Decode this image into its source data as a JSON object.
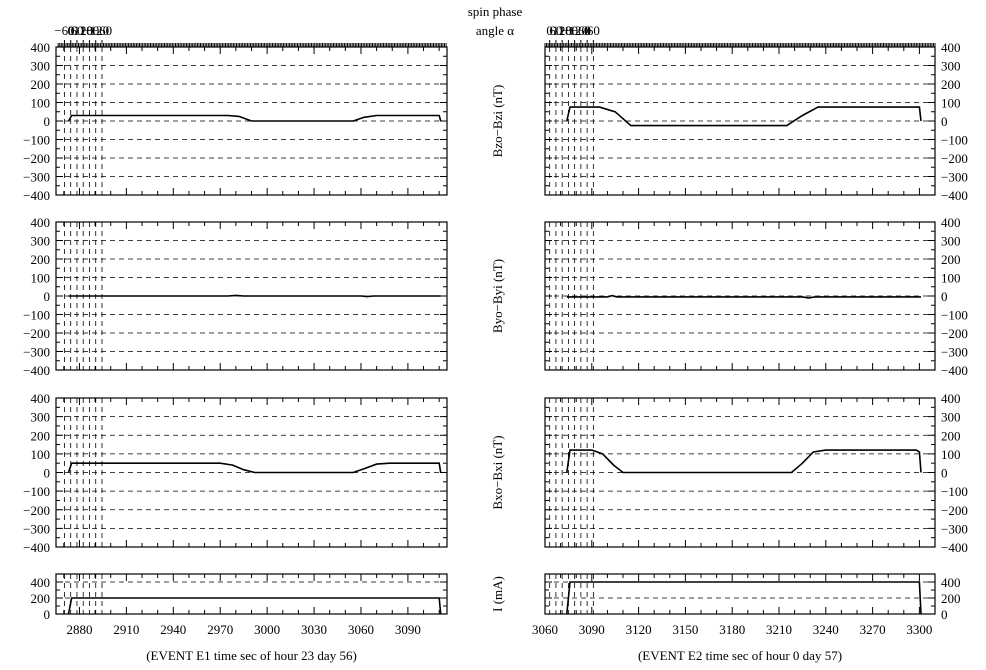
{
  "chart_data": {
    "type": "line",
    "top_axis": {
      "label_line1": "spin phase",
      "label_line2": "angle α",
      "left_ticks": [
        "−60",
        "0",
        "60",
        "120",
        "180",
        "−120",
        "−60"
      ],
      "right_ticks": [
        "0",
        "60",
        "120",
        "180",
        "−120",
        "−60",
        "0",
        "60"
      ]
    },
    "panel_labels": [
      "Bzo−Bzi (nT)",
      "Byo−Byi (nT)",
      "Bxo−Bxi (nT)",
      "I (mA)"
    ],
    "y_ticks_field": [
      "400",
      "300",
      "200",
      "100",
      "0",
      "−100",
      "−200",
      "−300",
      "−400"
    ],
    "y_range_field": [
      -400,
      400
    ],
    "y_ticks_current": [
      "400",
      "200",
      "0"
    ],
    "y_range_current": [
      0,
      500
    ],
    "grid": true,
    "events": [
      {
        "caption": "(EVENT E1  time sec of hour 23 day 56)",
        "x_ticks": [
          "2880",
          "2910",
          "2940",
          "2970",
          "3000",
          "3030",
          "3060",
          "3090"
        ],
        "x_range": [
          2865,
          3115
        ],
        "series": [
          {
            "panel": "Bzo−Bzi (nT)",
            "x": [
              2873,
              2875,
              2975,
              2982,
              2990,
              3055,
              3062,
              3070,
              3078,
              3110,
              3111
            ],
            "y": [
              0,
              30,
              30,
              25,
              0,
              0,
              20,
              30,
              30,
              30,
              0
            ]
          },
          {
            "panel": "Byo−Byi (nT)",
            "x": [
              2873,
              2975,
              2980,
              2985,
              3060,
              3064,
              3068,
              3111
            ],
            "y": [
              0,
              0,
              3,
              0,
              0,
              -3,
              0,
              0
            ]
          },
          {
            "panel": "Bxo−Bxi (nT)",
            "x": [
              2873,
              2875,
              2970,
              2978,
              2985,
              2992,
              3055,
              3062,
              3070,
              3078,
              3110,
              3111
            ],
            "y": [
              0,
              50,
              50,
              40,
              15,
              0,
              0,
              20,
              45,
              50,
              50,
              0
            ]
          },
          {
            "panel": "I (mA)",
            "x": [
              2873,
              2875,
              3110,
              3111
            ],
            "y": [
              0,
              200,
              200,
              0
            ]
          }
        ]
      },
      {
        "caption": "(EVENT E2  time sec of hour 0 day 57)",
        "x_ticks": [
          "3060",
          "3090",
          "3120",
          "3150",
          "3180",
          "3210",
          "3240",
          "3270",
          "3300"
        ],
        "x_range": [
          3060,
          3310
        ],
        "series": [
          {
            "panel": "Bzo−Bzi (nT)",
            "x": [
              3074,
              3076,
              3095,
              3105,
              3115,
              3215,
              3225,
              3235,
              3300,
              3301
            ],
            "y": [
              0,
              75,
              75,
              50,
              -25,
              -25,
              30,
              75,
              75,
              0
            ]
          },
          {
            "panel": "Byo−Byi (nT)",
            "x": [
              3074,
              3100,
              3103,
              3106,
              3225,
              3229,
              3233,
              3301
            ],
            "y": [
              -5,
              -5,
              2,
              -5,
              -5,
              -10,
              -5,
              -5
            ]
          },
          {
            "panel": "Bxo−Bxi (nT)",
            "x": [
              3074,
              3076,
              3090,
              3097,
              3104,
              3110,
              3218,
              3225,
              3232,
              3240,
              3298,
              3300,
              3301
            ],
            "y": [
              0,
              120,
              120,
              100,
              40,
              0,
              0,
              50,
              110,
              120,
              120,
              110,
              0
            ]
          },
          {
            "panel": "I (mA)",
            "x": [
              3074,
              3076,
              3300,
              3301
            ],
            "y": [
              0,
              400,
              400,
              0
            ]
          }
        ]
      }
    ]
  }
}
